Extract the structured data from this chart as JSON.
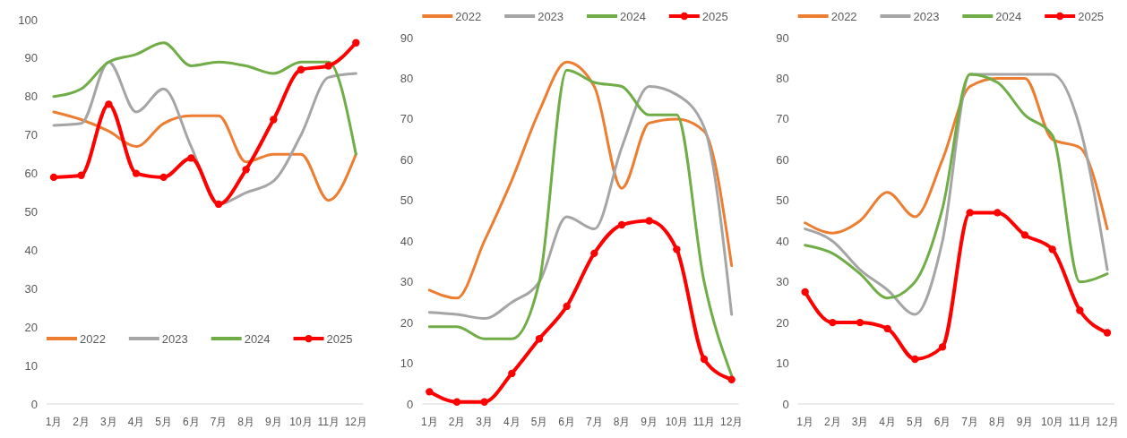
{
  "chart_data": [
    {
      "type": "line",
      "categories": [
        "1月",
        "2月",
        "3月",
        "4月",
        "5月",
        "6月",
        "7月",
        "8月",
        "9月",
        "10月",
        "11月",
        "12月"
      ],
      "ylim": [
        0,
        100
      ],
      "yticks": [
        0,
        10,
        20,
        30,
        40,
        50,
        60,
        70,
        80,
        90,
        100
      ],
      "legend": "bottom",
      "grid": false,
      "series": [
        {
          "name": "2022",
          "color": "#ed7d31",
          "marker": "none",
          "values": [
            76,
            74,
            71,
            67,
            73,
            75,
            75,
            63,
            65,
            65,
            53,
            65
          ]
        },
        {
          "name": "2023",
          "color": "#a5a5a5",
          "marker": "none",
          "values": [
            72.5,
            73,
            89,
            76,
            82,
            67,
            52,
            55,
            58,
            70,
            85,
            86
          ]
        },
        {
          "name": "2024",
          "color": "#70ad47",
          "marker": "none",
          "values": [
            80,
            82,
            89,
            91,
            94,
            88,
            89,
            88,
            86,
            89,
            89,
            65
          ]
        },
        {
          "name": "2025",
          "color": "#ff0000",
          "marker": "circle",
          "values": [
            59,
            59.5,
            78,
            60,
            59,
            64,
            52,
            61,
            74,
            87,
            88,
            94
          ]
        }
      ]
    },
    {
      "type": "line",
      "categories": [
        "1月",
        "2月",
        "3月",
        "4月",
        "5月",
        "6月",
        "7月",
        "8月",
        "9月",
        "10月",
        "11月",
        "12月"
      ],
      "ylim": [
        0,
        90
      ],
      "yticks": [
        0,
        10,
        20,
        30,
        40,
        50,
        60,
        70,
        80,
        90
      ],
      "legend": "top",
      "grid": false,
      "series": [
        {
          "name": "2022",
          "color": "#ed7d31",
          "marker": "none",
          "values": [
            28,
            26,
            40,
            55,
            72,
            84,
            78,
            53,
            69,
            70,
            67,
            34
          ]
        },
        {
          "name": "2023",
          "color": "#a5a5a5",
          "marker": "none",
          "values": [
            22.5,
            22,
            21,
            25,
            30,
            46,
            43,
            63,
            78,
            76,
            68,
            22
          ]
        },
        {
          "name": "2024",
          "color": "#70ad47",
          "marker": "none",
          "values": [
            19,
            19,
            16,
            16,
            30,
            82,
            79,
            78,
            71,
            71,
            30,
            7
          ]
        },
        {
          "name": "2025",
          "color": "#ff0000",
          "marker": "circle",
          "values": [
            3,
            0.5,
            0.5,
            7.5,
            16,
            24,
            37,
            44,
            45,
            38,
            11,
            6
          ]
        }
      ]
    },
    {
      "type": "line",
      "categories": [
        "1月",
        "2月",
        "3月",
        "4月",
        "5月",
        "6月",
        "7月",
        "8月",
        "9月",
        "10月",
        "11月",
        "12月"
      ],
      "ylim": [
        0,
        90
      ],
      "yticks": [
        0,
        10,
        20,
        30,
        40,
        50,
        60,
        70,
        80,
        90
      ],
      "legend": "top",
      "grid": false,
      "series": [
        {
          "name": "2022",
          "color": "#ed7d31",
          "marker": "none",
          "values": [
            44.5,
            42,
            45,
            52,
            46,
            60,
            78,
            80,
            80,
            65,
            63,
            43
          ]
        },
        {
          "name": "2023",
          "color": "#a5a5a5",
          "marker": "none",
          "values": [
            43,
            40,
            33,
            28,
            22,
            40,
            81,
            81,
            81,
            81,
            68,
            33
          ]
        },
        {
          "name": "2024",
          "color": "#70ad47",
          "marker": "none",
          "values": [
            39,
            37,
            32,
            26,
            30,
            48,
            81,
            79,
            71,
            66,
            30,
            32
          ]
        },
        {
          "name": "2025",
          "color": "#ff0000",
          "marker": "circle",
          "values": [
            27.5,
            20,
            20,
            18.5,
            11,
            14,
            47,
            47,
            41.5,
            38,
            23,
            17.5
          ]
        }
      ]
    }
  ]
}
